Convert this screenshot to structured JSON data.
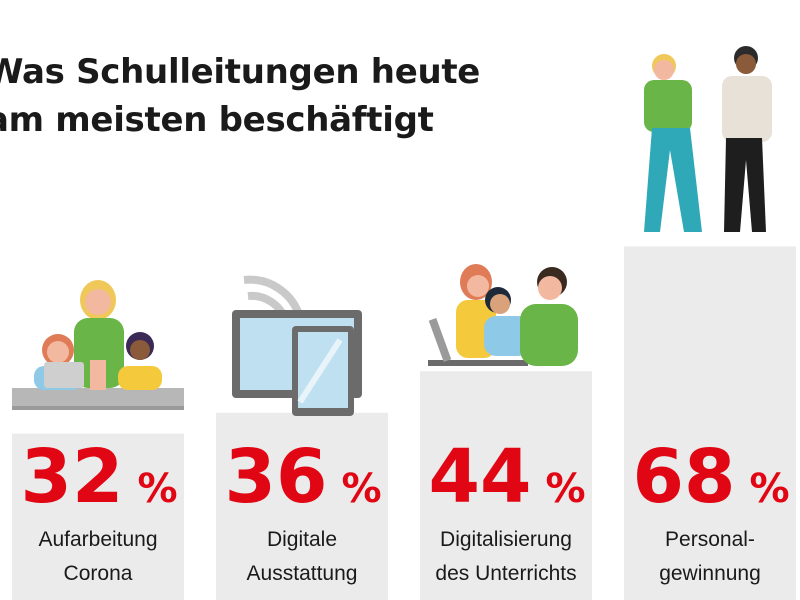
{
  "chart_data": {
    "type": "bar",
    "title_lines": [
      "Was Schulleitungen heute",
      "am meisten beschäftigt"
    ],
    "categories": [
      [
        "Aufarbeitung",
        "Corona"
      ],
      [
        "Digitale",
        "Ausstattung"
      ],
      [
        "Digitalisierung",
        "des Unterrichts"
      ],
      [
        "Personal-",
        "gewinnung"
      ]
    ],
    "values": [
      32,
      36,
      44,
      68
    ],
    "value_suffix": "%",
    "ylim": [
      0,
      100
    ],
    "colors": {
      "bar": "#ebebeb",
      "value_text": "#e10614",
      "label_text": "#1a1a1a"
    }
  }
}
